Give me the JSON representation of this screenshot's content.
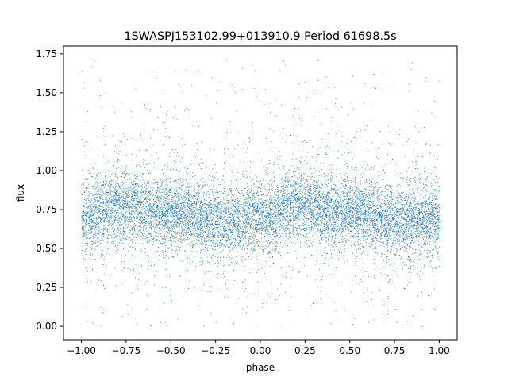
{
  "chart_data": {
    "type": "scatter",
    "title": "1SWASPJ153102.99+013910.9 Period 61698.5s",
    "xlabel": "phase",
    "ylabel": "flux",
    "xlim": [
      -1.1,
      1.1
    ],
    "ylim": [
      -0.086,
      1.8
    ],
    "xticks": [
      -1.0,
      -0.75,
      -0.5,
      -0.25,
      0.0,
      0.25,
      0.5,
      0.75,
      1.0
    ],
    "xtick_labels": [
      "−1.00",
      "−0.75",
      "−0.50",
      "−0.25",
      "0.00",
      "0.25",
      "0.50",
      "0.75",
      "1.00"
    ],
    "yticks": [
      0.0,
      0.25,
      0.5,
      0.75,
      1.0,
      1.25,
      1.5,
      1.75
    ],
    "ytick_labels": [
      "0.00",
      "0.25",
      "0.50",
      "0.75",
      "1.00",
      "1.25",
      "1.50",
      "1.75"
    ],
    "grid": false,
    "marker_color": "#1f77b4",
    "series": [
      {
        "x_range": [
          -1.0,
          1.0
        ],
        "folded_twice": true,
        "median_flux_by_phase": [
          {
            "phase": -1.0,
            "flux": 0.7
          },
          {
            "phase": -0.8,
            "flux": 0.77
          },
          {
            "phase": -0.5,
            "flux": 0.73
          },
          {
            "phase": -0.2,
            "flux": 0.68
          },
          {
            "phase": 0.0,
            "flux": 0.7
          },
          {
            "phase": 0.2,
            "flux": 0.77
          },
          {
            "phase": 0.5,
            "flux": 0.73
          },
          {
            "phase": 0.8,
            "flux": 0.68
          },
          {
            "phase": 1.0,
            "flux": 0.7
          }
        ],
        "flux_clip_range": [
          0.0,
          1.72
        ]
      }
    ]
  }
}
